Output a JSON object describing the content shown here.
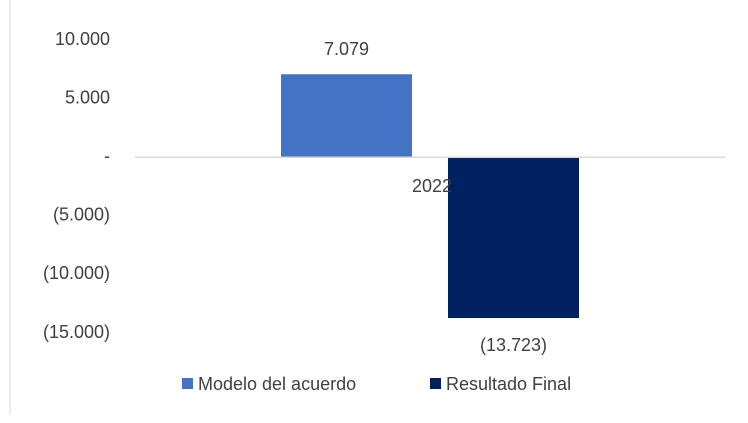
{
  "chart_data": {
    "type": "bar",
    "categories": [
      "2022"
    ],
    "series": [
      {
        "name": "Modelo del acuerdo",
        "color": "#4472c4",
        "values": [
          7079
        ],
        "value_labels": [
          "7.079"
        ]
      },
      {
        "name": "Resultado Final",
        "color": "#002060",
        "values": [
          -13723
        ],
        "value_labels": [
          "(13.723)"
        ]
      }
    ],
    "ylim": [
      -15000,
      10000
    ],
    "yticks": [
      {
        "value": 10000,
        "label": "10.000"
      },
      {
        "value": 5000,
        "label": "5.000"
      },
      {
        "value": 0,
        "label": "-"
      },
      {
        "value": -5000,
        "label": "(5.000)"
      },
      {
        "value": -10000,
        "label": "(10.000)"
      },
      {
        "value": -15000,
        "label": "(15.000)"
      }
    ],
    "grid": false,
    "legend": "bottom"
  }
}
